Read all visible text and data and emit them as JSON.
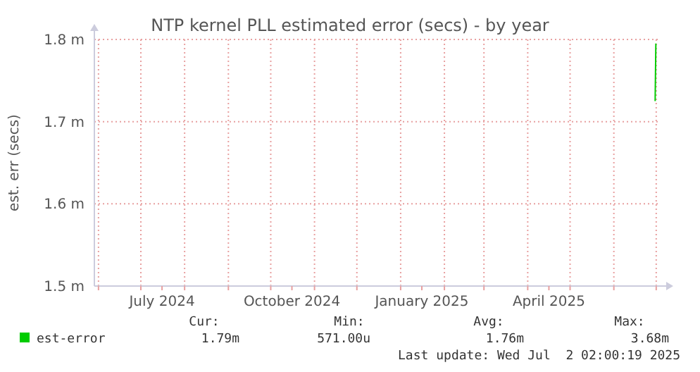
{
  "chart_data": {
    "type": "line",
    "title": "NTP kernel PLL estimated error (secs) - by year",
    "ylabel": "est. err (secs)",
    "x": [
      "2025-06-30T06:00",
      "2025-06-30T18:00"
    ],
    "series": [
      {
        "name": "est-error",
        "color": "#00cc00",
        "values": [
          1.725,
          1.795
        ]
      }
    ],
    "xlim": [
      "2024-05-29T02:00",
      "2025-07-02T02:00"
    ],
    "xticks": [
      {
        "value": "2024-06-01",
        "label": null
      },
      {
        "value": "2024-07-01",
        "label": null
      },
      {
        "value": "2024-08-01",
        "label": null
      },
      {
        "value": "2024-09-01",
        "label": null
      },
      {
        "value": "2024-10-01",
        "label": null
      },
      {
        "value": "2024-11-01",
        "label": null
      },
      {
        "value": "2024-12-01",
        "label": null
      },
      {
        "value": "2025-01-01",
        "label": null
      },
      {
        "value": "2025-02-01",
        "label": null
      },
      {
        "value": "2025-03-01",
        "label": null
      },
      {
        "value": "2025-04-01",
        "label": null
      },
      {
        "value": "2025-05-01",
        "label": null
      },
      {
        "value": "2025-06-01",
        "label": null
      },
      {
        "value": "2025-07-01",
        "label": null
      },
      {
        "value": "2024-07-16",
        "label": "July 2024"
      },
      {
        "value": "2024-10-16",
        "label": "October 2024"
      },
      {
        "value": "2025-01-16",
        "label": "January 2025"
      },
      {
        "value": "2025-04-16",
        "label": "April 2025"
      }
    ],
    "ylim": [
      1.5,
      1.8
    ],
    "yticks": [
      {
        "value": 1.5,
        "label": "1.5 m"
      },
      {
        "value": 1.6,
        "label": "1.6 m"
      },
      {
        "value": 1.7,
        "label": "1.7 m"
      },
      {
        "value": 1.8,
        "label": "1.8 m"
      }
    ],
    "grid": true,
    "legend": "bottom",
    "annotations": [
      "Cur:",
      "Min:",
      "Avg:",
      "Max:",
      "1.79m",
      "571.00u",
      "1.76m",
      "3.68m",
      "Last update: Wed Jul  2 02:00:19 2025"
    ]
  }
}
